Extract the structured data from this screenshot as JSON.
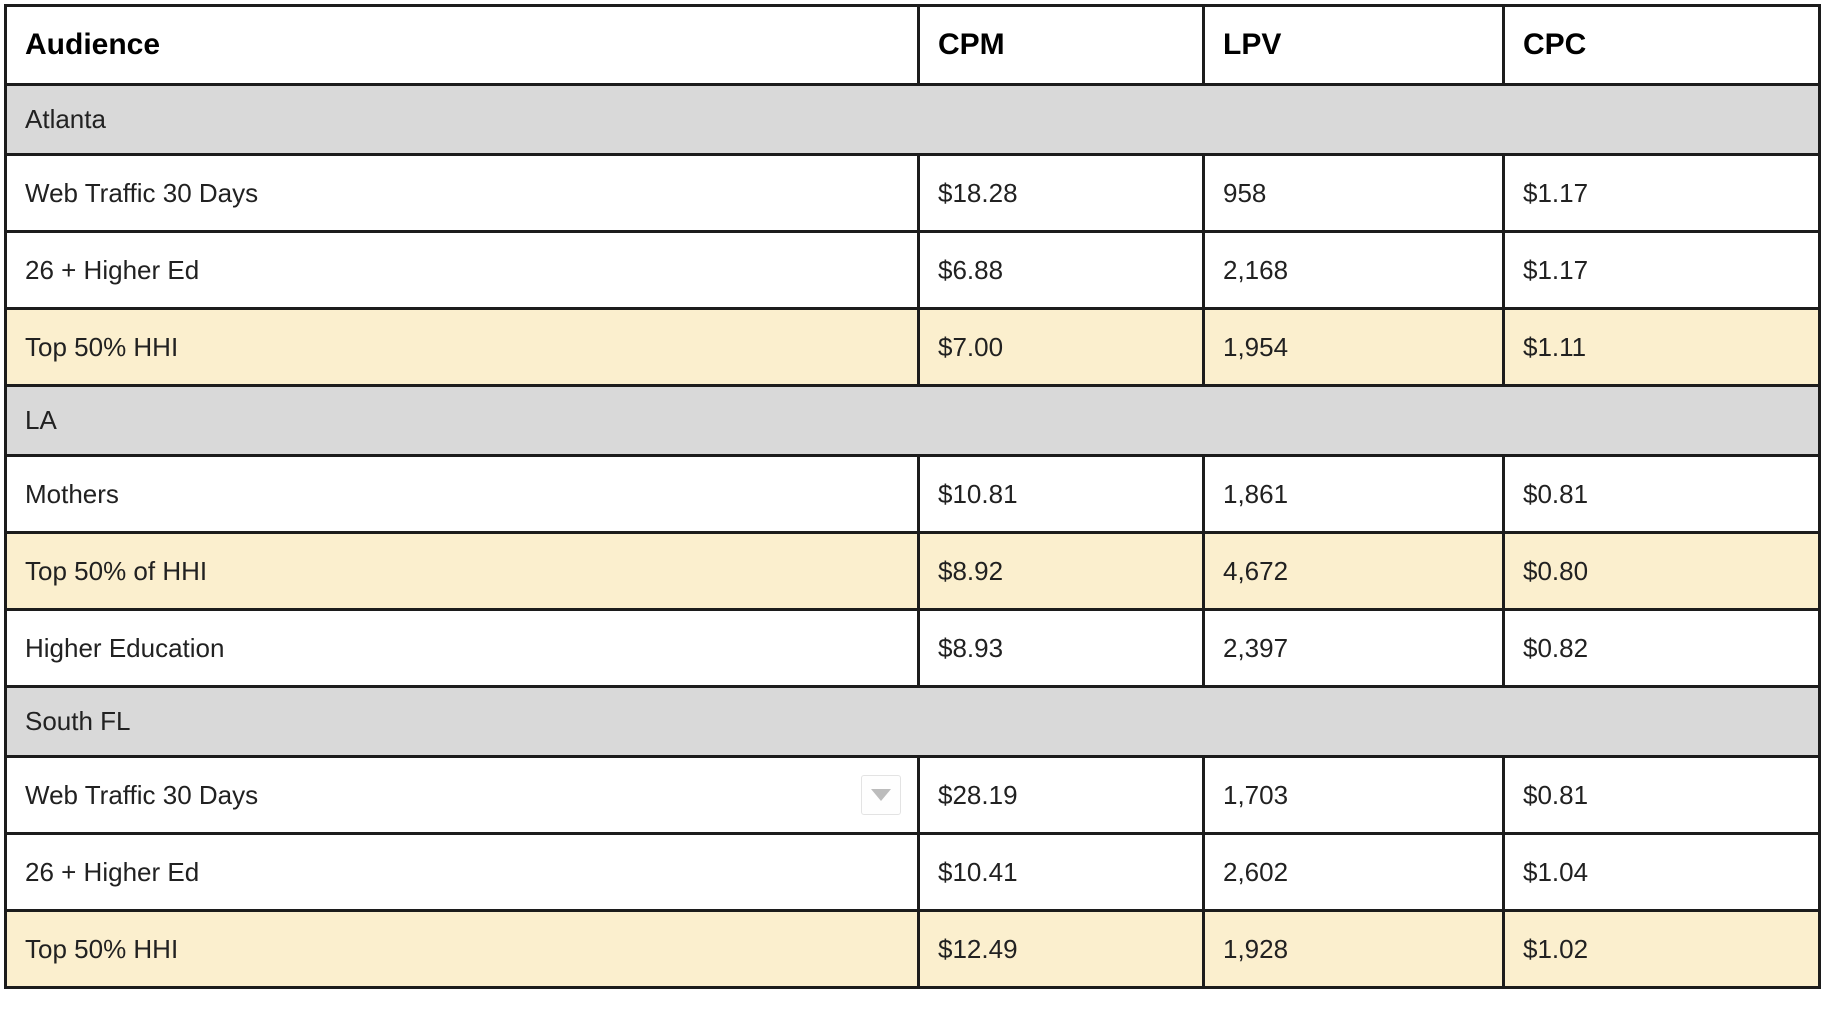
{
  "table": {
    "columns": [
      {
        "label": "Audience"
      },
      {
        "label": "CPM"
      },
      {
        "label": "LPV"
      },
      {
        "label": "CPC"
      }
    ],
    "sections": [
      {
        "name": "Atlanta",
        "rows": [
          {
            "audience": "Web Traffic 30 Days",
            "cpm": "$18.28",
            "lpv": "958",
            "cpc": "$1.17",
            "highlighted": false,
            "has_dropdown": false
          },
          {
            "audience": "26 + Higher Ed",
            "cpm": "$6.88",
            "lpv": "2,168",
            "cpc": "$1.17",
            "highlighted": false,
            "has_dropdown": false
          },
          {
            "audience": "Top 50% HHI",
            "cpm": "$7.00",
            "lpv": "1,954",
            "cpc": "$1.11",
            "highlighted": true,
            "has_dropdown": false
          }
        ]
      },
      {
        "name": "LA",
        "rows": [
          {
            "audience": "Mothers",
            "cpm": "$10.81",
            "lpv": "1,861",
            "cpc": "$0.81",
            "highlighted": false,
            "has_dropdown": false
          },
          {
            "audience": "Top 50% of HHI",
            "cpm": "$8.92",
            "lpv": "4,672",
            "cpc": "$0.80",
            "highlighted": true,
            "has_dropdown": false
          },
          {
            "audience": "Higher Education",
            "cpm": "$8.93",
            "lpv": "2,397",
            "cpc": "$0.82",
            "highlighted": false,
            "has_dropdown": false
          }
        ]
      },
      {
        "name": "South FL",
        "rows": [
          {
            "audience": "Web Traffic 30 Days",
            "cpm": "$28.19",
            "lpv": "1,703",
            "cpc": "$0.81",
            "highlighted": false,
            "has_dropdown": true
          },
          {
            "audience": "26 + Higher Ed",
            "cpm": "$10.41",
            "lpv": "2,602",
            "cpc": "$1.04",
            "highlighted": false,
            "has_dropdown": false
          },
          {
            "audience": "Top 50% HHI",
            "cpm": "$12.49",
            "lpv": "1,928",
            "cpc": "$1.02",
            "highlighted": true,
            "has_dropdown": false
          }
        ]
      }
    ],
    "colors": {
      "highlight_row": "#fbefce",
      "section_row": "#d9d9d9",
      "border": "#1c1c1c",
      "dropdown_triangle": "#bcbcbc"
    }
  }
}
